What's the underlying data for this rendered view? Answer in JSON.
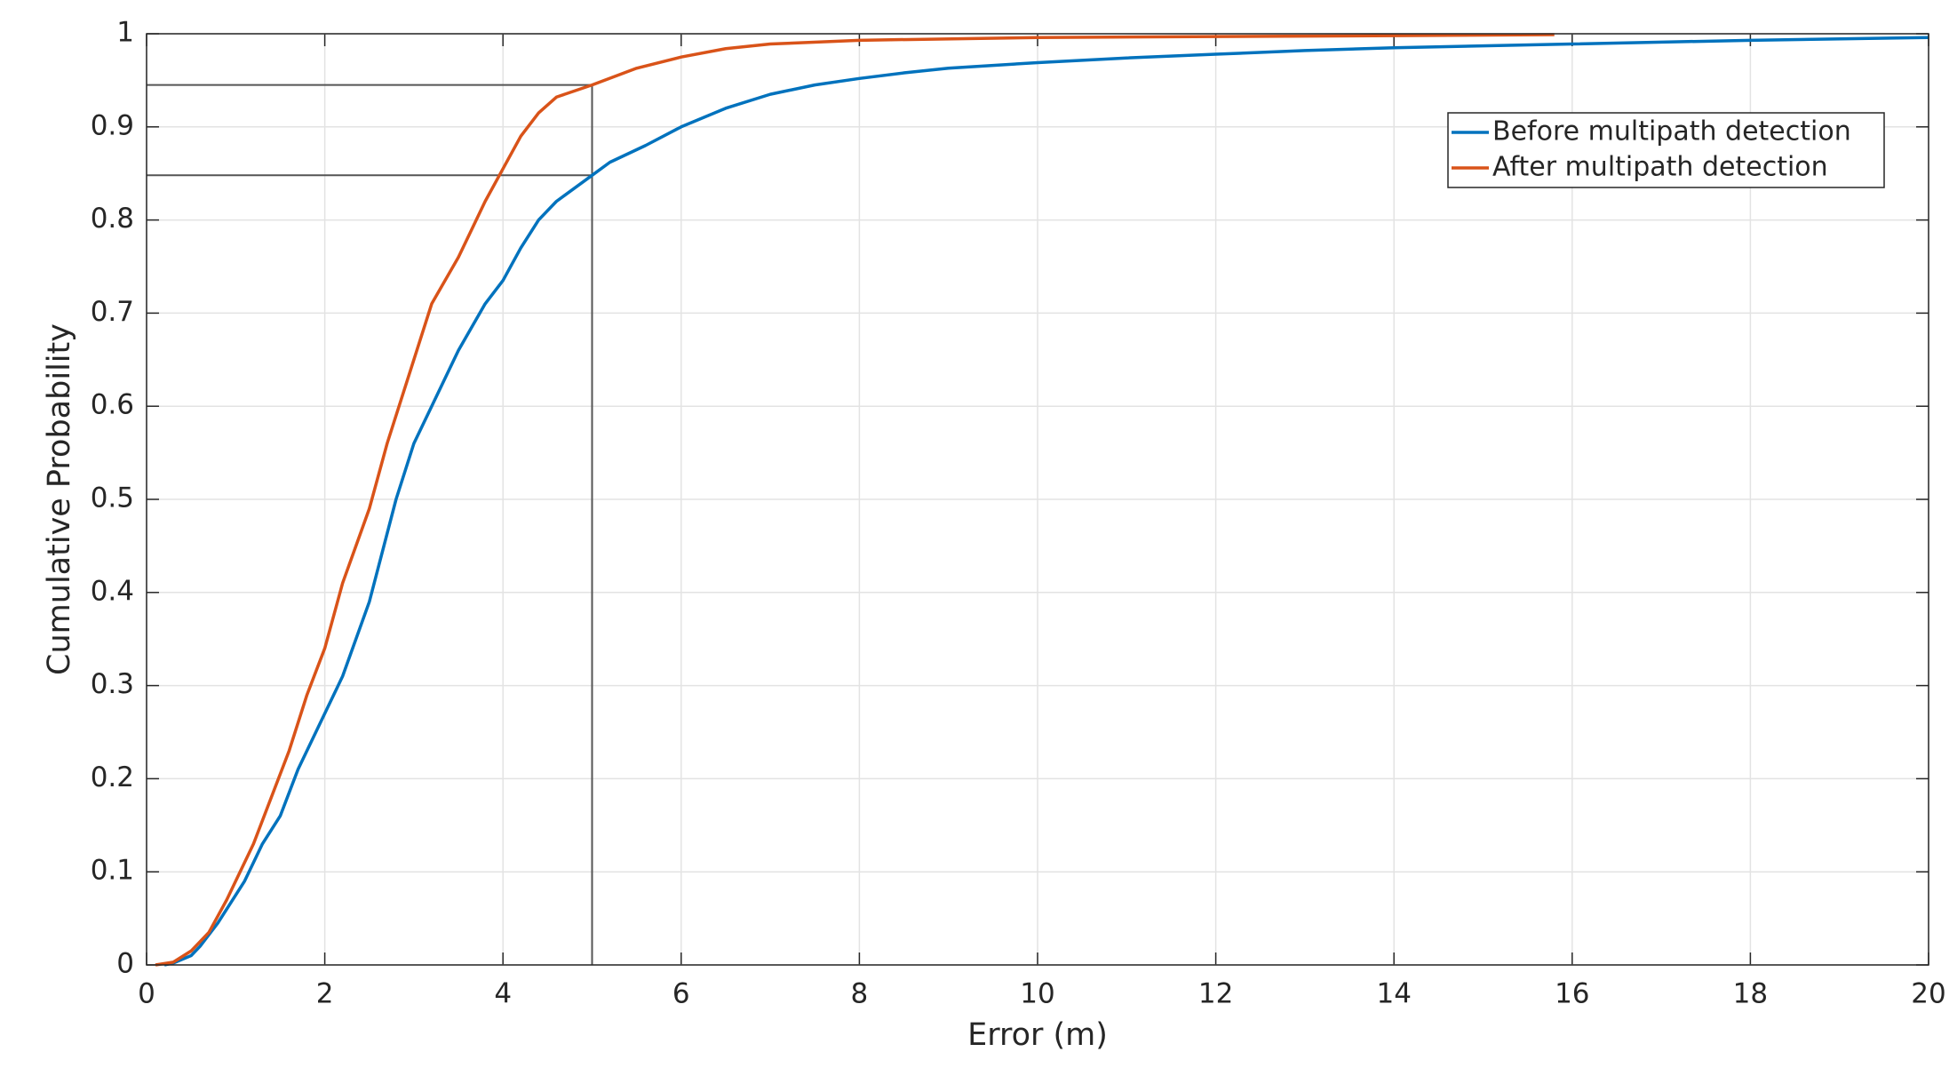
{
  "chart_data": {
    "type": "line",
    "xlabel": "Error (m)",
    "ylabel": "Cumulative Probability",
    "xlim": [
      0,
      20
    ],
    "ylim": [
      0,
      1
    ],
    "xticks": [
      0,
      2,
      4,
      6,
      8,
      10,
      12,
      14,
      16,
      18,
      20
    ],
    "yticks": [
      0,
      0.1,
      0.2,
      0.3,
      0.4,
      0.5,
      0.6,
      0.7,
      0.8,
      0.9,
      1
    ],
    "grid": true,
    "legend": "northeast",
    "series": [
      {
        "name": "Before multipath detection",
        "color": "#0072bd",
        "x": [
          0.2,
          0.3,
          0.5,
          0.6,
          0.8,
          1.0,
          1.1,
          1.2,
          1.3,
          1.5,
          1.7,
          2.0,
          2.2,
          2.5,
          2.8,
          3.0,
          3.2,
          3.5,
          3.8,
          4.0,
          4.2,
          4.4,
          4.6,
          5.0,
          5.2,
          5.6,
          6.0,
          6.5,
          7.0,
          7.5,
          8.0,
          8.5,
          9.0,
          10,
          11,
          12,
          13,
          14,
          16,
          18,
          20
        ],
        "values": [
          0,
          0.002,
          0.01,
          0.02,
          0.045,
          0.075,
          0.09,
          0.11,
          0.13,
          0.16,
          0.21,
          0.27,
          0.31,
          0.39,
          0.5,
          0.56,
          0.6,
          0.66,
          0.71,
          0.735,
          0.77,
          0.8,
          0.82,
          0.848,
          0.862,
          0.88,
          0.9,
          0.92,
          0.935,
          0.945,
          0.952,
          0.958,
          0.963,
          0.969,
          0.974,
          0.978,
          0.982,
          0.985,
          0.989,
          0.993,
          0.996
        ]
      },
      {
        "name": "After multipath detection",
        "color": "#d95319",
        "x": [
          0.1,
          0.3,
          0.5,
          0.7,
          0.9,
          1.0,
          1.2,
          1.4,
          1.6,
          1.8,
          2.0,
          2.2,
          2.5,
          2.7,
          3.0,
          3.2,
          3.5,
          3.8,
          4.0,
          4.2,
          4.4,
          4.6,
          5.0,
          5.5,
          6.0,
          6.5,
          7.0,
          8.0,
          10,
          12,
          14,
          15.8
        ],
        "values": [
          0,
          0.003,
          0.015,
          0.035,
          0.07,
          0.09,
          0.13,
          0.18,
          0.23,
          0.29,
          0.34,
          0.41,
          0.49,
          0.56,
          0.65,
          0.71,
          0.76,
          0.82,
          0.855,
          0.89,
          0.915,
          0.932,
          0.945,
          0.963,
          0.975,
          0.984,
          0.989,
          0.993,
          0.996,
          0.997,
          0.998,
          0.999
        ]
      }
    ],
    "annotations": [
      {
        "x": 5,
        "y": 0.945
      },
      {
        "x": 5,
        "y": 0.848
      }
    ]
  }
}
